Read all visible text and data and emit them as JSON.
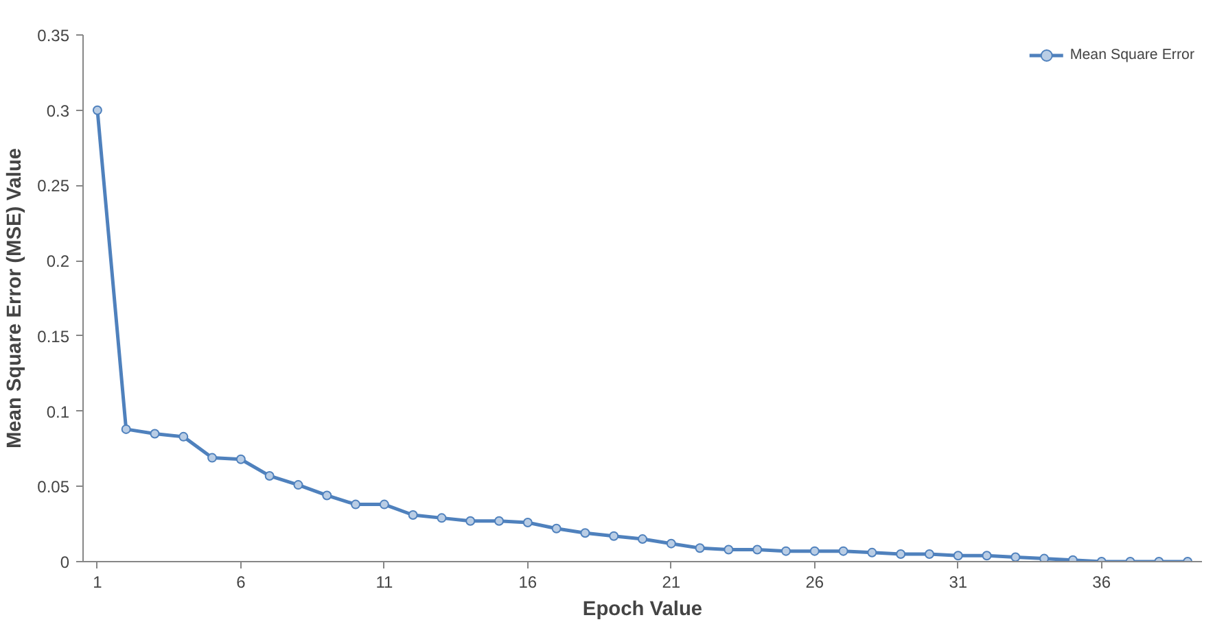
{
  "chart_data": {
    "type": "line",
    "xlabel": "Epoch Value",
    "ylabel": "Mean Square Error (MSE) Value",
    "x": [
      1,
      2,
      3,
      4,
      5,
      6,
      7,
      8,
      9,
      10,
      11,
      12,
      13,
      14,
      15,
      16,
      17,
      18,
      19,
      20,
      21,
      22,
      23,
      24,
      25,
      26,
      27,
      28,
      29,
      30,
      31,
      32,
      33,
      34,
      35,
      36,
      37,
      38,
      39
    ],
    "xlim": [
      0.5,
      39.5
    ],
    "xticks": [
      1,
      6,
      11,
      16,
      21,
      26,
      31,
      36
    ],
    "series": [
      {
        "name": "Mean Square Error",
        "color": "#4f81bd",
        "values": [
          0.3,
          0.088,
          0.085,
          0.083,
          0.069,
          0.068,
          0.057,
          0.051,
          0.044,
          0.038,
          0.038,
          0.031,
          0.029,
          0.027,
          0.027,
          0.026,
          0.022,
          0.019,
          0.017,
          0.015,
          0.012,
          0.009,
          0.008,
          0.008,
          0.007,
          0.007,
          0.007,
          0.006,
          0.005,
          0.005,
          0.004,
          0.004,
          0.003,
          0.002,
          0.001,
          0.0,
          0.0,
          0.0,
          0.0
        ]
      }
    ],
    "ylim": [
      0,
      0.35
    ],
    "yticks": [
      0,
      0.05,
      0.1,
      0.15,
      0.2,
      0.25,
      0.3,
      0.35
    ],
    "grid": false,
    "legend": "top right",
    "marker": "circle",
    "line_style": "solid"
  }
}
